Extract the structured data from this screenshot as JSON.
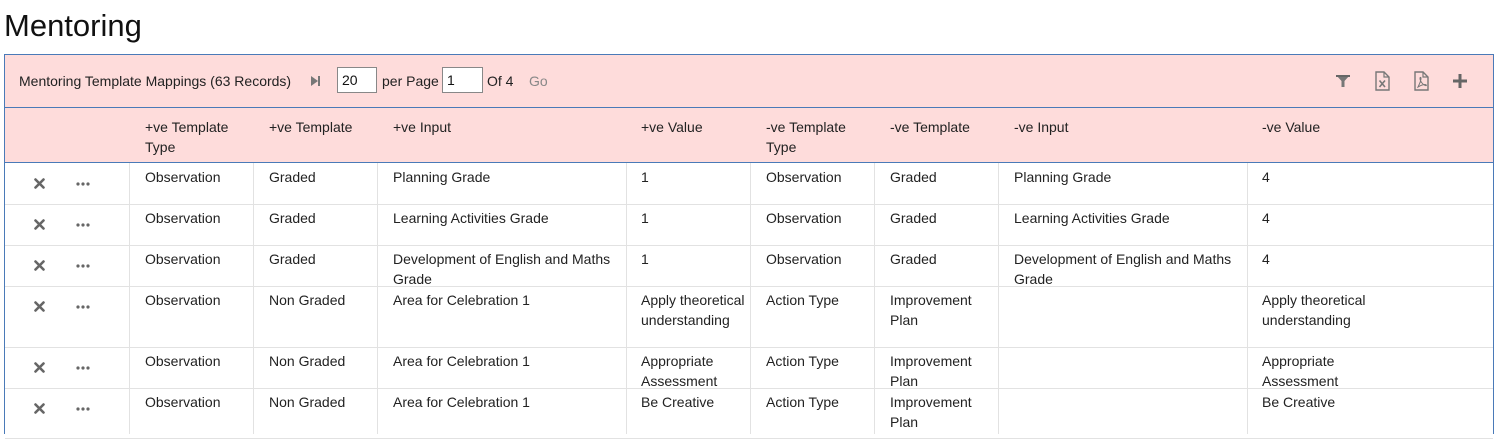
{
  "page": {
    "title": "Mentoring"
  },
  "toolbar": {
    "title": "Mentoring Template Mappings (63 Records)",
    "page_size": "20",
    "per_page_label": "per Page",
    "page_number": "1",
    "of_label": "Of 4",
    "go_label": "Go",
    "icons": [
      "last-page-icon",
      "filter-icon",
      "export-excel-icon",
      "export-pdf-icon",
      "add-icon"
    ]
  },
  "columns": [
    "+ve Template Type",
    "+ve Template",
    "+ve Input",
    "+ve Value",
    "-ve Template Type",
    "-ve Template",
    "-ve Input",
    "-ve Value"
  ],
  "rows": [
    [
      "Observation",
      "Graded",
      "Planning Grade",
      "1",
      "Observation",
      "Graded",
      "Planning Grade",
      "4"
    ],
    [
      "Observation",
      "Graded",
      "Learning Activities Grade",
      "1",
      "Observation",
      "Graded",
      "Learning Activities Grade",
      "4"
    ],
    [
      "Observation",
      "Graded",
      "Development of English and Maths Grade",
      "1",
      "Observation",
      "Graded",
      "Development of English and Maths Grade",
      "4"
    ],
    [
      "Observation",
      "Non Graded",
      "Area for Celebration 1",
      "Apply theoretical understanding",
      "Action Type",
      "Improvement Plan",
      "",
      "Apply theoretical understanding"
    ],
    [
      "Observation",
      "Non Graded",
      "Area for Celebration 1",
      "Appropriate Assessment",
      "Action Type",
      "Improvement Plan",
      "",
      "Appropriate Assessment"
    ],
    [
      "Observation",
      "Non Graded",
      "Area for Celebration 1",
      "Be Creative",
      "Action Type",
      "Improvement Plan",
      "",
      "Be Creative"
    ]
  ]
}
